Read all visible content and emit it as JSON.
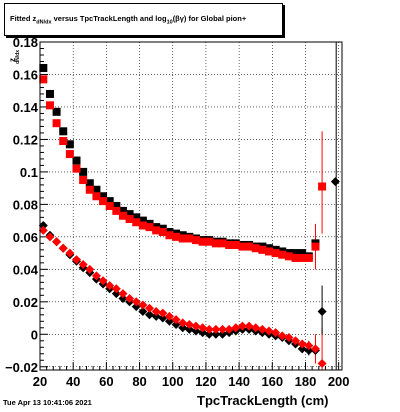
{
  "header": {
    "title_parts": [
      "Fitted  z",
      "dN/dx",
      "  versus TpcTrackLength and log",
      "10",
      "(βγ) for Global pion+"
    ]
  },
  "footer": {
    "date": "Tue Apr 13 10:41:06 2021"
  },
  "chart_data": {
    "type": "scatter",
    "xlabel": "TpcTrackLength (cm)",
    "ylabel": "z_dN/dx",
    "xlim": [
      20,
      202
    ],
    "ylim": [
      -0.022,
      0.18
    ],
    "grid": true,
    "x_ticks": [
      20,
      40,
      60,
      80,
      100,
      120,
      140,
      160,
      180,
      200
    ],
    "y_ticks": [
      -0.02,
      0,
      0.02,
      0.04,
      0.06,
      0.08,
      0.1,
      0.12,
      0.14,
      0.16,
      0.18
    ],
    "y_tick_labels": [
      "−0.02",
      "0",
      "0.02",
      "0.04",
      "0.06",
      "0.08",
      "0.1",
      "0.12",
      "0.14",
      "0.16",
      "0.18"
    ],
    "series": [
      {
        "marker": "square",
        "color": "#000000",
        "points": [
          [
            22,
            0.164
          ],
          [
            26,
            0.148
          ],
          [
            30,
            0.137
          ],
          [
            34,
            0.125
          ],
          [
            38,
            0.117
          ],
          [
            42,
            0.107
          ],
          [
            46,
            0.1
          ],
          [
            50,
            0.093
          ],
          [
            54,
            0.089
          ],
          [
            58,
            0.085
          ],
          [
            62,
            0.082
          ],
          [
            66,
            0.079
          ],
          [
            70,
            0.076
          ],
          [
            74,
            0.074
          ],
          [
            78,
            0.072
          ],
          [
            82,
            0.07
          ],
          [
            86,
            0.068
          ],
          [
            90,
            0.066
          ],
          [
            94,
            0.065
          ],
          [
            98,
            0.063
          ],
          [
            102,
            0.062
          ],
          [
            106,
            0.061
          ],
          [
            110,
            0.06
          ],
          [
            114,
            0.059
          ],
          [
            118,
            0.058
          ],
          [
            122,
            0.058
          ],
          [
            126,
            0.057
          ],
          [
            130,
            0.057
          ],
          [
            134,
            0.056
          ],
          [
            138,
            0.056
          ],
          [
            142,
            0.055
          ],
          [
            146,
            0.055
          ],
          [
            150,
            0.054
          ],
          [
            154,
            0.054
          ],
          [
            158,
            0.053
          ],
          [
            162,
            0.052
          ],
          [
            166,
            0.051
          ],
          [
            170,
            0.05
          ],
          [
            174,
            0.05
          ],
          [
            178,
            0.05
          ],
          [
            182,
            0.048
          ],
          [
            186,
            0.056
          ]
        ]
      },
      {
        "marker": "diamond",
        "color": "#000000",
        "points": [
          [
            22,
            0.067
          ],
          [
            26,
            0.061
          ],
          [
            30,
            0.057
          ],
          [
            34,
            0.053
          ],
          [
            38,
            0.049
          ],
          [
            42,
            0.045
          ],
          [
            46,
            0.041
          ],
          [
            50,
            0.038
          ],
          [
            54,
            0.034
          ],
          [
            58,
            0.031
          ],
          [
            62,
            0.028
          ],
          [
            66,
            0.025
          ],
          [
            70,
            0.022
          ],
          [
            74,
            0.02
          ],
          [
            78,
            0.017
          ],
          [
            82,
            0.014
          ],
          [
            86,
            0.012
          ],
          [
            90,
            0.011
          ],
          [
            94,
            0.01
          ],
          [
            98,
            0.008
          ],
          [
            102,
            0.006
          ],
          [
            106,
            0.004
          ],
          [
            110,
            0.003
          ],
          [
            114,
            0.002
          ],
          [
            118,
            0.001
          ],
          [
            122,
            0.0
          ],
          [
            126,
            0.0
          ],
          [
            130,
            0.0
          ],
          [
            134,
            0.001
          ],
          [
            138,
            0.002
          ],
          [
            142,
            0.003
          ],
          [
            146,
            0.003
          ],
          [
            150,
            0.002
          ],
          [
            154,
            0.001
          ],
          [
            158,
            0.0
          ],
          [
            162,
            -0.001
          ],
          [
            166,
            -0.002
          ],
          [
            170,
            -0.004
          ],
          [
            174,
            -0.006
          ],
          [
            178,
            -0.009
          ],
          [
            182,
            -0.01
          ],
          [
            186,
            -0.01
          ],
          [
            190,
            0.014
          ],
          [
            198,
            0.094
          ]
        ]
      },
      {
        "marker": "square",
        "color": "#ff0000",
        "points": [
          [
            22,
            0.157
          ],
          [
            26,
            0.141
          ],
          [
            30,
            0.13
          ],
          [
            34,
            0.119
          ],
          [
            38,
            0.111
          ],
          [
            42,
            0.102
          ],
          [
            46,
            0.095
          ],
          [
            50,
            0.089
          ],
          [
            54,
            0.085
          ],
          [
            58,
            0.082
          ],
          [
            62,
            0.079
          ],
          [
            66,
            0.076
          ],
          [
            70,
            0.073
          ],
          [
            74,
            0.071
          ],
          [
            78,
            0.069
          ],
          [
            82,
            0.067
          ],
          [
            86,
            0.066
          ],
          [
            90,
            0.064
          ],
          [
            94,
            0.063
          ],
          [
            98,
            0.061
          ],
          [
            102,
            0.06
          ],
          [
            106,
            0.059
          ],
          [
            110,
            0.059
          ],
          [
            114,
            0.058
          ],
          [
            118,
            0.057
          ],
          [
            122,
            0.057
          ],
          [
            126,
            0.056
          ],
          [
            130,
            0.056
          ],
          [
            134,
            0.055
          ],
          [
            138,
            0.055
          ],
          [
            142,
            0.054
          ],
          [
            146,
            0.054
          ],
          [
            150,
            0.053
          ],
          [
            154,
            0.052
          ],
          [
            158,
            0.051
          ],
          [
            162,
            0.05
          ],
          [
            166,
            0.049
          ],
          [
            170,
            0.048
          ],
          [
            174,
            0.047
          ],
          [
            178,
            0.047
          ],
          [
            182,
            0.047
          ],
          [
            186,
            0.054
          ],
          [
            190,
            0.091
          ]
        ]
      },
      {
        "marker": "diamond",
        "color": "#ff0000",
        "points": [
          [
            22,
            0.064
          ],
          [
            26,
            0.06
          ],
          [
            30,
            0.057
          ],
          [
            34,
            0.053
          ],
          [
            38,
            0.05
          ],
          [
            42,
            0.046
          ],
          [
            46,
            0.043
          ],
          [
            50,
            0.04
          ],
          [
            54,
            0.036
          ],
          [
            58,
            0.033
          ],
          [
            62,
            0.03
          ],
          [
            66,
            0.028
          ],
          [
            70,
            0.025
          ],
          [
            74,
            0.022
          ],
          [
            78,
            0.02
          ],
          [
            82,
            0.018
          ],
          [
            86,
            0.016
          ],
          [
            90,
            0.014
          ],
          [
            94,
            0.013
          ],
          [
            98,
            0.011
          ],
          [
            102,
            0.009
          ],
          [
            106,
            0.007
          ],
          [
            110,
            0.006
          ],
          [
            114,
            0.005
          ],
          [
            118,
            0.004
          ],
          [
            122,
            0.003
          ],
          [
            126,
            0.003
          ],
          [
            130,
            0.003
          ],
          [
            134,
            0.003
          ],
          [
            138,
            0.004
          ],
          [
            142,
            0.005
          ],
          [
            146,
            0.005
          ],
          [
            150,
            0.004
          ],
          [
            154,
            0.003
          ],
          [
            158,
            0.002
          ],
          [
            162,
            0.001
          ],
          [
            166,
            -0.001
          ],
          [
            170,
            -0.002
          ],
          [
            174,
            -0.004
          ],
          [
            178,
            -0.006
          ],
          [
            182,
            -0.007
          ],
          [
            186,
            -0.009
          ],
          [
            190,
            -0.018
          ]
        ]
      }
    ],
    "errorbars": [
      {
        "x": 186,
        "y_low": 0.04,
        "y_high": 0.068,
        "color": "#ff0000"
      },
      {
        "x": 190,
        "y_low": 0.062,
        "y_high": 0.125,
        "color": "#ff0000"
      },
      {
        "x": 190,
        "y_low": -0.022,
        "y_high": 0.004,
        "color": "#ff0000"
      },
      {
        "x": 186,
        "y_low": -0.018,
        "y_high": 0.0,
        "color": "#ff0000"
      },
      {
        "x": 182,
        "y_low": -0.013,
        "y_high": -0.004,
        "color": "#000000"
      },
      {
        "x": 190,
        "y_low": 0.0,
        "y_high": 0.03,
        "color": "#000000"
      }
    ]
  }
}
